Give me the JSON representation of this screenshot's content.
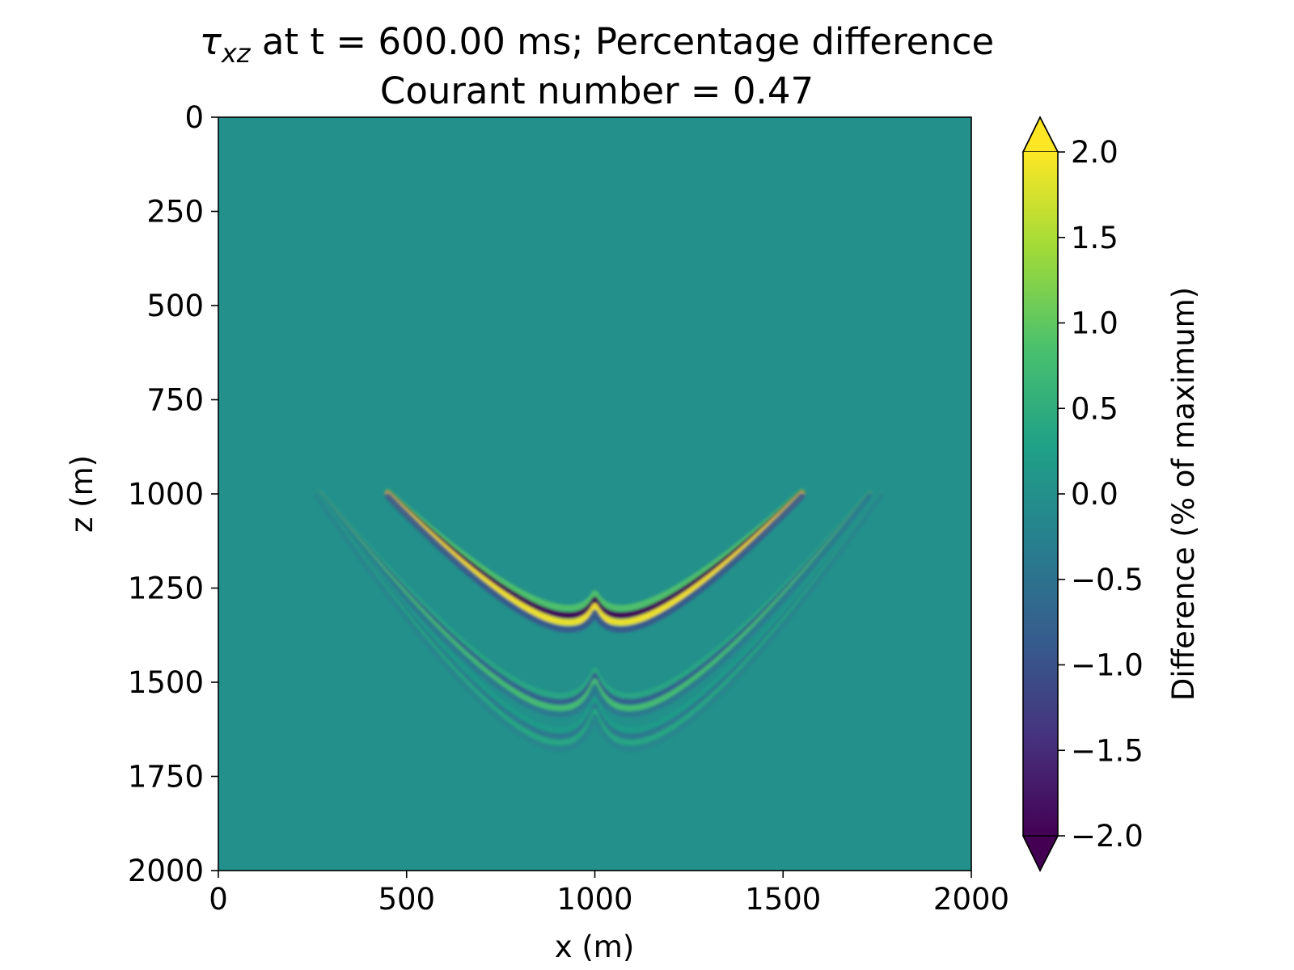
{
  "chart_data": {
    "type": "heatmap",
    "title_symbol": "τ",
    "title_subscript": "xz",
    "title_rest": " at t = 600.00 ms; Percentage difference",
    "subtitle": "Courant number = 0.47",
    "xlabel": "x (m)",
    "ylabel": "z (m)",
    "xlim": [
      0,
      2000
    ],
    "ylim": [
      2000,
      0
    ],
    "x_ticks": [
      "0",
      "500",
      "1000",
      "1500",
      "2000"
    ],
    "y_ticks": [
      "0",
      "250",
      "500",
      "750",
      "1000",
      "1250",
      "1500",
      "1750",
      "2000"
    ],
    "colorbar": {
      "label": "Difference (% of maximum)",
      "range": [
        -2.0,
        2.0
      ],
      "extend": "both",
      "ticks": [
        "2.0",
        "1.5",
        "1.0",
        "0.5",
        "0.0",
        "−0.5",
        "−1.0",
        "−1.5",
        "−2.0"
      ],
      "tick_values": [
        2.0,
        1.5,
        1.0,
        0.5,
        0.0,
        -0.5,
        -1.0,
        -1.5,
        -2.0
      ],
      "colormap": [
        "#440154",
        "#46327e",
        "#365c8d",
        "#277f8e",
        "#1fa187",
        "#4ac16d",
        "#a0da39",
        "#fde725"
      ]
    },
    "background_value": 0.0,
    "source_x": 1000,
    "source_z": 1000,
    "features": [
      {
        "name": "main-wavefront",
        "x_range": [
          450,
          1550
        ],
        "z_top": 1000,
        "z_bottom": 1290,
        "peak": 2.0
      },
      {
        "name": "outer-wavefront-1",
        "x_range": [
          270,
          1730
        ],
        "z_top": 1000,
        "z_bottom": 1490,
        "peak": 0.8
      },
      {
        "name": "outer-wavefront-2",
        "x_range": [
          260,
          1760
        ],
        "z_top": 1000,
        "z_bottom": 1570,
        "peak": 0.4
      }
    ]
  }
}
